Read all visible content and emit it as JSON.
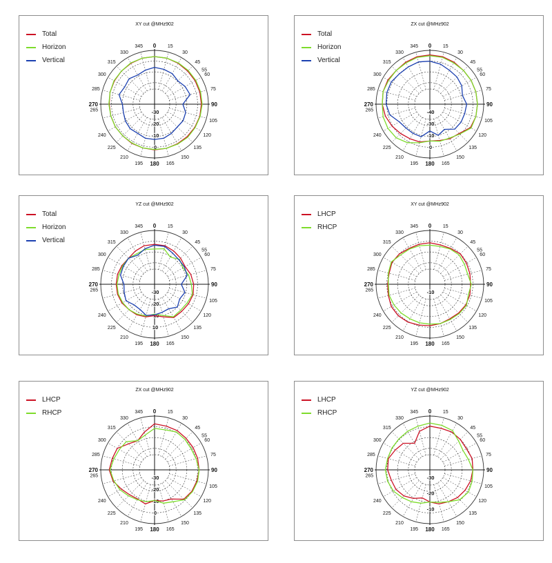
{
  "colors": {
    "red": "#cc1124",
    "green": "#7ddc2b",
    "blue": "#1a3fb0",
    "frame": "#8c8c8c",
    "axis": "#111111",
    "grid": "#333333"
  },
  "chart_data": [
    {
      "type": "polar-line",
      "title": "XY cut @MHz902",
      "angle_ticks": [
        "0",
        "15",
        "30",
        "45",
        "55",
        "60",
        "75",
        "90",
        "105",
        "120",
        "135",
        "150",
        "165",
        "180",
        "195",
        "210",
        "225",
        "240",
        "265",
        "270",
        "285",
        "300",
        "315",
        "330",
        "345"
      ],
      "radial_tick_labels": [
        "-30",
        "-20",
        "-10",
        "0"
      ],
      "radial_range": [
        -40,
        10
      ],
      "series": [
        {
          "name": "Total",
          "color": "red",
          "angles": [
            0,
            15,
            30,
            45,
            60,
            75,
            90,
            105,
            120,
            135,
            150,
            165,
            180,
            195,
            210,
            225,
            240,
            255,
            270,
            285,
            300,
            315,
            330,
            345
          ],
          "values": [
            2,
            2,
            1.5,
            1,
            1,
            1,
            1,
            1,
            0.5,
            0,
            -0.5,
            -0.5,
            -0.5,
            -1,
            -1,
            -1.5,
            -1,
            -1,
            -1,
            0,
            0.5,
            1,
            1.5,
            2
          ]
        },
        {
          "name": "Horizon",
          "color": "green",
          "angles": [
            0,
            15,
            30,
            45,
            60,
            75,
            90,
            105,
            120,
            135,
            150,
            165,
            180,
            195,
            210,
            225,
            240,
            255,
            270,
            285,
            300,
            315,
            330,
            345
          ],
          "values": [
            2,
            2,
            2,
            2,
            2,
            2,
            2,
            1.5,
            1,
            1,
            0,
            -0.5,
            -1,
            -1,
            -1.5,
            -1.5,
            -1,
            -1,
            -0.5,
            0,
            1,
            1,
            2,
            2
          ]
        },
        {
          "name": "Vertical",
          "color": "blue",
          "angles": [
            0,
            15,
            30,
            45,
            60,
            75,
            90,
            105,
            120,
            135,
            150,
            165,
            180,
            195,
            210,
            225,
            240,
            255,
            270,
            285,
            300,
            315,
            330,
            345
          ],
          "values": [
            -12,
            -13,
            -14,
            -17,
            -14,
            -12,
            -23,
            -18,
            -17,
            -18,
            -16,
            -14,
            -14,
            -14,
            -16,
            -15,
            -16,
            -18,
            -18,
            -12,
            -15,
            -13,
            -16,
            -14
          ]
        }
      ]
    },
    {
      "type": "polar-line",
      "title": "ZX cut @MHz902",
      "angle_ticks": [
        "0",
        "15",
        "30",
        "45",
        "55",
        "60",
        "75",
        "90",
        "105",
        "120",
        "135",
        "150",
        "165",
        "180",
        "195",
        "210",
        "225",
        "240",
        "265",
        "270",
        "285",
        "300",
        "315",
        "330",
        "345"
      ],
      "radial_tick_labels": [
        "-40",
        "-30",
        "-10",
        "0"
      ],
      "radial_range": [
        -40,
        10
      ],
      "series": [
        {
          "name": "Total",
          "color": "red",
          "angles": [
            0,
            15,
            30,
            45,
            60,
            75,
            90,
            105,
            120,
            135,
            150,
            165,
            180,
            195,
            210,
            225,
            240,
            255,
            270,
            285,
            300,
            315,
            330,
            345
          ],
          "values": [
            4,
            4,
            3,
            2,
            2,
            2,
            2,
            2,
            1,
            -6,
            -8,
            -11,
            -12,
            -9,
            -8,
            -6,
            -3,
            0,
            2,
            3,
            3,
            2,
            3,
            4
          ]
        },
        {
          "name": "Horizon",
          "color": "green",
          "angles": [
            0,
            15,
            30,
            45,
            60,
            75,
            90,
            105,
            120,
            135,
            150,
            165,
            180,
            195,
            210,
            225,
            240,
            255,
            270,
            285,
            300,
            315,
            330,
            345
          ],
          "values": [
            3,
            3,
            2,
            2,
            2,
            2,
            2,
            2,
            2,
            -5,
            -9,
            -10,
            -12,
            -8,
            -2,
            2,
            3,
            3,
            2,
            3,
            2,
            2,
            2,
            3
          ]
        },
        {
          "name": "Vertical",
          "color": "blue",
          "angles": [
            0,
            15,
            30,
            45,
            60,
            75,
            90,
            105,
            120,
            135,
            150,
            165,
            180,
            195,
            210,
            225,
            240,
            255,
            270,
            285,
            300,
            315,
            330,
            345
          ],
          "values": [
            -4,
            -6,
            -9,
            -10,
            -12,
            -16,
            -12,
            -13,
            -13,
            -14,
            -22,
            -18,
            -25,
            -16,
            -16,
            -16,
            -14,
            -6,
            -3,
            -2,
            -2,
            -4,
            -4,
            -3
          ]
        }
      ]
    },
    {
      "type": "polar-line",
      "title": "YZ cut @MHz902",
      "angle_ticks": [
        "0",
        "15",
        "30",
        "45",
        "55",
        "60",
        "75",
        "90",
        "105",
        "120",
        "135",
        "150",
        "165",
        "180",
        "195",
        "210",
        "225",
        "240",
        "265",
        "270",
        "285",
        "300",
        "315",
        "330",
        "345"
      ],
      "radial_tick_labels": [
        "-30",
        "-20",
        "-10",
        "10"
      ],
      "radial_range": [
        -40,
        10
      ],
      "series": [
        {
          "name": "Total",
          "color": "red",
          "angles": [
            0,
            15,
            30,
            45,
            60,
            75,
            90,
            105,
            120,
            135,
            150,
            165,
            180,
            195,
            210,
            225,
            240,
            255,
            270,
            285,
            300,
            315,
            330,
            345
          ],
          "values": [
            -8,
            -8,
            -10,
            -12,
            -14,
            -11,
            -9,
            -8,
            -9,
            -10,
            -10,
            -16,
            -19,
            -16,
            -14,
            -13,
            -11,
            -10,
            -10,
            -10,
            -11,
            -12,
            -10,
            -8
          ]
        },
        {
          "name": "Horizon",
          "color": "green",
          "angles": [
            0,
            15,
            30,
            45,
            60,
            75,
            90,
            105,
            120,
            135,
            150,
            165,
            180,
            195,
            210,
            225,
            240,
            255,
            270,
            285,
            300,
            315,
            330,
            345
          ],
          "values": [
            -14,
            -12,
            -19,
            -14,
            -17,
            -14,
            -12,
            -9,
            -11,
            -12,
            -11,
            -18,
            -21,
            -17,
            -15,
            -13,
            -12,
            -11,
            -11,
            -12,
            -12,
            -12,
            -14,
            -13
          ]
        },
        {
          "name": "Vertical",
          "color": "blue",
          "angles": [
            0,
            15,
            30,
            45,
            60,
            75,
            90,
            105,
            120,
            135,
            150,
            165,
            180,
            195,
            210,
            225,
            240,
            255,
            270,
            285,
            300,
            315,
            330,
            345
          ],
          "values": [
            -9,
            -9,
            -13,
            -15,
            -15,
            -16,
            -25,
            -19,
            -22,
            -18,
            -23,
            -22,
            -20,
            -18,
            -22,
            -22,
            -17,
            -19,
            -20,
            -14,
            -13,
            -12,
            -16,
            -12
          ]
        }
      ]
    },
    {
      "type": "polar-line",
      "title": "XY cut @MHz902",
      "angle_ticks": [
        "0",
        "15",
        "30",
        "45",
        "55",
        "60",
        "75",
        "90",
        "105",
        "120",
        "135",
        "150",
        "165",
        "180",
        "195",
        "210",
        "225",
        "240",
        "265",
        "270",
        "285",
        "300",
        "315",
        "330",
        "345"
      ],
      "radial_tick_labels": [
        "-10"
      ],
      "radial_range": [
        -40,
        10
      ],
      "series": [
        {
          "name": "LHCP",
          "color": "red",
          "angles": [
            0,
            15,
            30,
            45,
            60,
            75,
            90,
            105,
            120,
            135,
            150,
            165,
            180,
            195,
            210,
            225,
            240,
            255,
            270,
            285,
            300,
            315,
            330,
            345
          ],
          "values": [
            -6,
            -7,
            -6,
            -4,
            -5,
            -6,
            -7,
            -6,
            -6,
            -7,
            -8,
            -7,
            -6,
            -5,
            -3,
            -2,
            -2,
            -4,
            -5,
            -5,
            -3,
            -4,
            -6,
            -6
          ]
        },
        {
          "name": "RHCP",
          "color": "green",
          "angles": [
            0,
            15,
            30,
            45,
            60,
            75,
            90,
            105,
            120,
            135,
            150,
            165,
            180,
            195,
            210,
            225,
            240,
            255,
            270,
            285,
            300,
            315,
            330,
            345
          ],
          "values": [
            -9,
            -9,
            -7,
            -6,
            -8,
            -9,
            -6,
            -8,
            -5,
            -6,
            -7,
            -7,
            -8,
            -8,
            -8,
            -7,
            -6,
            -5,
            -6,
            -4,
            -2,
            -6,
            -7,
            -8
          ]
        }
      ]
    },
    {
      "type": "polar-line",
      "title": "ZX cut @MHz902",
      "angle_ticks": [
        "0",
        "15",
        "30",
        "45",
        "55",
        "60",
        "75",
        "90",
        "105",
        "120",
        "135",
        "150",
        "165",
        "180",
        "195",
        "210",
        "225",
        "240",
        "265",
        "270",
        "285",
        "300",
        "315",
        "330",
        "345"
      ],
      "radial_tick_labels": [
        "-30",
        "-20",
        "-10",
        "0"
      ],
      "radial_range": [
        -40,
        10
      ],
      "series": [
        {
          "name": "LHCP",
          "color": "red",
          "angles": [
            0,
            15,
            30,
            45,
            60,
            75,
            90,
            105,
            120,
            135,
            150,
            165,
            180,
            195,
            210,
            225,
            240,
            255,
            270,
            285,
            300,
            315,
            330,
            345
          ],
          "values": [
            0,
            -1,
            -1,
            -2,
            -2,
            -2,
            -2,
            -3,
            -4,
            -6,
            -16,
            -18,
            -20,
            -14,
            -16,
            -14,
            -10,
            -4,
            -1,
            -3,
            -4,
            -12,
            -16,
            -9
          ]
        },
        {
          "name": "RHCP",
          "color": "green",
          "angles": [
            0,
            15,
            30,
            45,
            60,
            75,
            90,
            105,
            120,
            135,
            150,
            165,
            180,
            195,
            210,
            225,
            240,
            255,
            270,
            285,
            300,
            315,
            330,
            345
          ],
          "values": [
            -6,
            -6,
            -3,
            -4,
            -5,
            -4,
            -2,
            -2,
            -3,
            -5,
            -12,
            -15,
            -20,
            -17,
            -15,
            -12,
            -8,
            -5,
            -2,
            -5,
            -7,
            -8,
            -16,
            -13
          ]
        }
      ]
    },
    {
      "type": "polar-line",
      "title": "YZ cut @MHz902",
      "angle_ticks": [
        "0",
        "15",
        "30",
        "45",
        "55",
        "60",
        "75",
        "90",
        "105",
        "120",
        "135",
        "150",
        "165",
        "180",
        "195",
        "210",
        "225",
        "240",
        "265",
        "270",
        "285",
        "300",
        "315",
        "330",
        "345"
      ],
      "radial_tick_labels": [
        "-30",
        "-20",
        "-10"
      ],
      "radial_range": [
        -40,
        10
      ],
      "series": [
        {
          "name": "LHCP",
          "color": "red",
          "angles": [
            0,
            15,
            30,
            45,
            60,
            75,
            90,
            105,
            120,
            135,
            150,
            165,
            180,
            195,
            210,
            225,
            240,
            255,
            270,
            285,
            300,
            315,
            330,
            345
          ],
          "values": [
            -3,
            -4,
            -3,
            -4,
            -5,
            -3,
            -4,
            -5,
            -7,
            -9,
            -12,
            -14,
            -18,
            -22,
            -17,
            -12,
            -9,
            -8,
            -5,
            -4,
            -8,
            -11,
            -20,
            -8
          ]
        },
        {
          "name": "RHCP",
          "color": "green",
          "angles": [
            0,
            15,
            30,
            45,
            60,
            75,
            90,
            105,
            120,
            135,
            150,
            165,
            180,
            195,
            210,
            225,
            240,
            255,
            270,
            285,
            300,
            315,
            330,
            345
          ],
          "values": [
            1,
            0,
            -1,
            -7,
            -10,
            -8,
            -4,
            -3,
            -2,
            -5,
            -12,
            -16,
            -18,
            -15,
            -12,
            -9,
            -5,
            -3,
            -2,
            -3,
            -3,
            -3,
            -2,
            -1
          ]
        }
      ]
    }
  ]
}
